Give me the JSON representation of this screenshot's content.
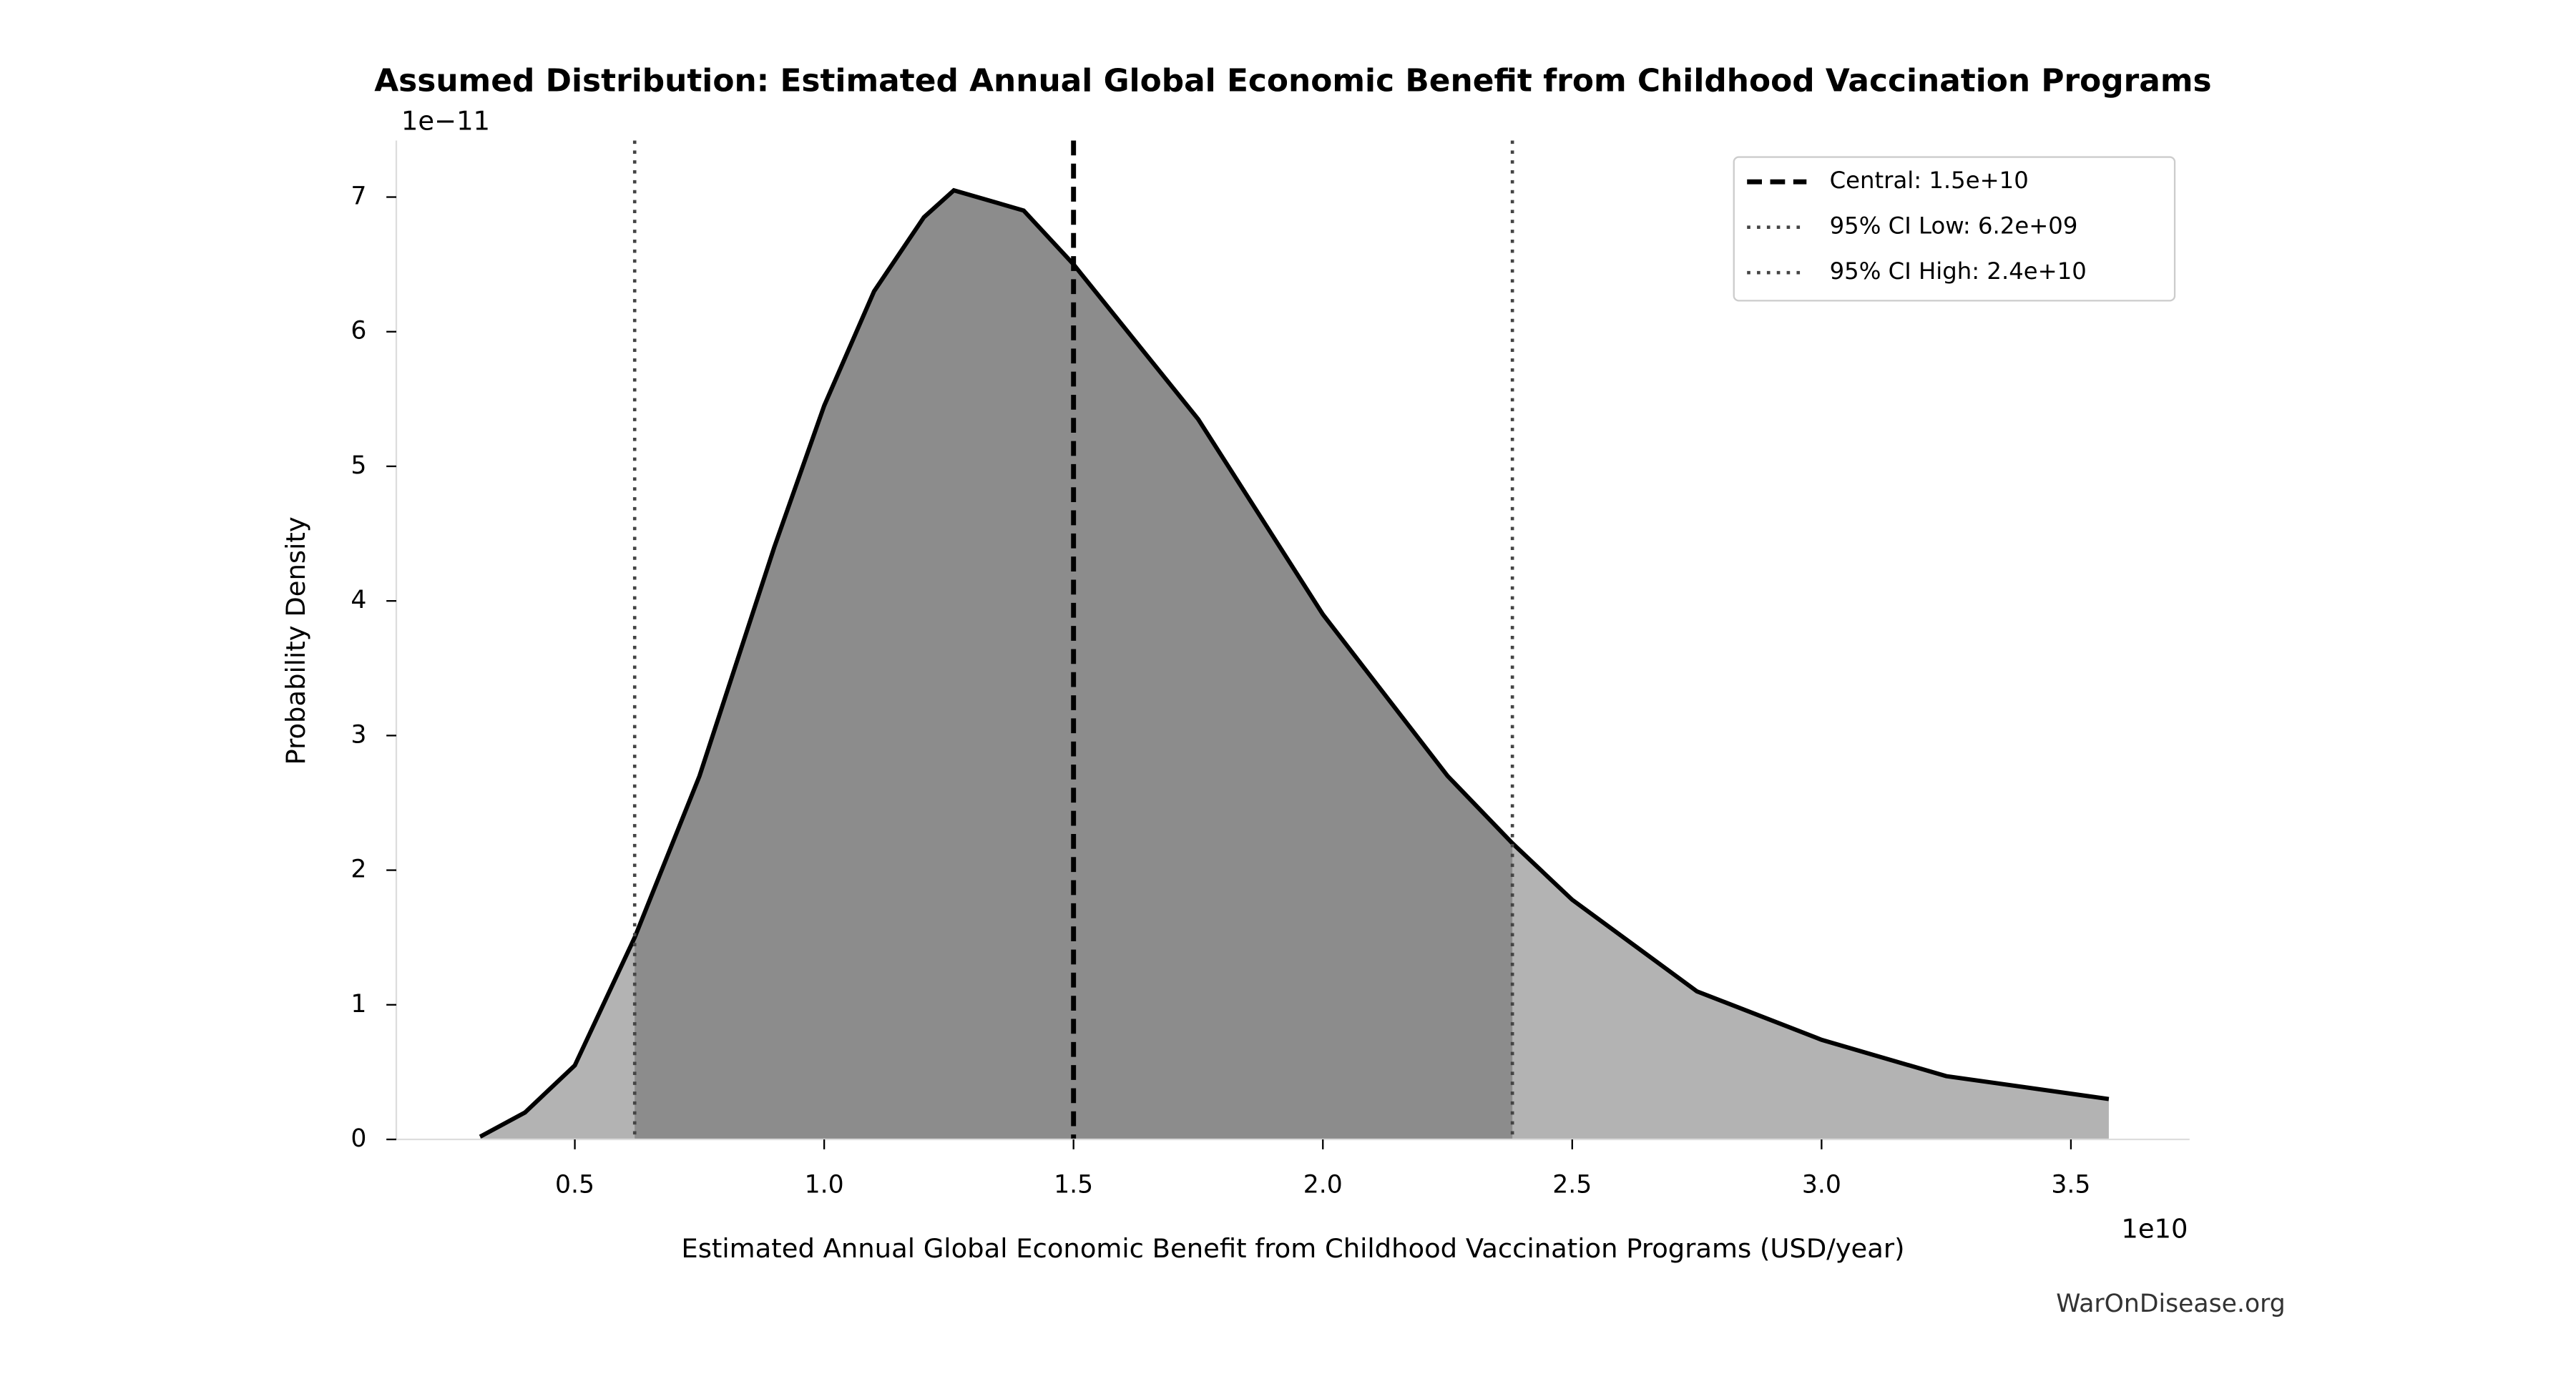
{
  "chart_data": {
    "type": "area",
    "title": "Assumed Distribution: Estimated Annual Global Economic Benefit from Childhood Vaccination Programs",
    "x_label": "Estimated Annual Global Economic Benefit from Childhood Vaccination Programs (USD/year)",
    "y_label": "Probability Density",
    "x_offset_label": "1e10",
    "y_offset_label": "1e−11",
    "watermark": "WarOnDisease.org",
    "x": [
      0.31,
      0.4,
      0.5,
      0.62,
      0.75,
      0.9,
      1.0,
      1.1,
      1.2,
      1.26,
      1.4,
      1.5,
      1.75,
      2.0,
      2.25,
      2.38,
      2.5,
      2.75,
      3.0,
      3.25,
      3.576
    ],
    "series": [
      {
        "color": "#000000",
        "fill_color": "#b3b3b3",
        "ci_fill_color": "#8c8c8c",
        "values": [
          0.02,
          0.2,
          0.55,
          1.5,
          2.7,
          4.4,
          5.45,
          6.3,
          6.85,
          7.05,
          6.9,
          6.5,
          5.35,
          3.9,
          2.7,
          2.2,
          1.78,
          1.1,
          0.74,
          0.47,
          0.3
        ]
      }
    ],
    "vlines": [
      {
        "name": "Central: 1.5e+10",
        "x": 1.5,
        "style": "dashed",
        "color": "#000000"
      },
      {
        "name": "95% CI Low: 6.2e+09",
        "x": 0.62,
        "style": "dotted",
        "color": "#444444"
      },
      {
        "name": "95% CI High: 2.4e+10",
        "x": 2.38,
        "style": "dotted",
        "color": "#444444"
      }
    ],
    "legend": "upper right",
    "xlim": [
      0.142,
      3.738
    ],
    "xticks": [
      {
        "value": 0.5,
        "label": "0.5"
      },
      {
        "value": 1,
        "label": "1.0"
      },
      {
        "value": 1.5,
        "label": "1.5"
      },
      {
        "value": 2,
        "label": "2.0"
      },
      {
        "value": 2.5,
        "label": "2.5"
      },
      {
        "value": 3,
        "label": "3.0"
      },
      {
        "value": 3.5,
        "label": "3.5"
      }
    ],
    "ylim": [
      0,
      7.42
    ],
    "yticks": [
      0,
      1,
      2,
      3,
      4,
      5,
      6,
      7
    ]
  }
}
